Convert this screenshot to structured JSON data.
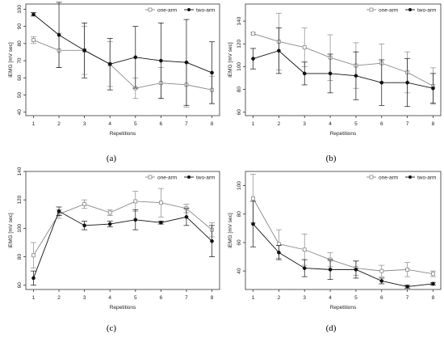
{
  "figure": {
    "captions": [
      "(a)",
      "(b)",
      "(c)",
      "(d)"
    ]
  },
  "colors": {
    "one_arm": "#888888",
    "two_arm": "#111111",
    "axis": "#333333",
    "background": "#ffffff"
  },
  "chart_data": [
    {
      "type": "line",
      "panel": "(a)",
      "xlabel": "Repetitions",
      "ylabel": "iEMG [mV sec]",
      "x": [
        1,
        2,
        3,
        4,
        5,
        6,
        7,
        8
      ],
      "xlim": [
        0.7,
        8.3
      ],
      "ylim": [
        38,
        103
      ],
      "yticks": [
        40,
        50,
        60,
        70,
        80,
        90,
        100
      ],
      "legend": "top-right",
      "series": [
        {
          "name": "one-arm",
          "marker": "open-square",
          "values": [
            82,
            76,
            76,
            68,
            54,
            57,
            56,
            53
          ],
          "error": [
            2,
            10,
            14,
            13,
            6,
            9,
            13,
            8
          ]
        },
        {
          "name": "two-arm",
          "marker": "filled-circle",
          "values": [
            97,
            85,
            76,
            68,
            72,
            70,
            69,
            63
          ],
          "error": [
            1,
            19,
            16,
            15,
            18,
            22,
            25,
            18
          ]
        }
      ]
    },
    {
      "type": "line",
      "panel": "(b)",
      "xlabel": "Repetitions",
      "ylabel": "iEMG [mV sec]",
      "x": [
        1,
        2,
        3,
        4,
        5,
        6,
        7,
        8
      ],
      "xlim": [
        0.7,
        8.3
      ],
      "ylim": [
        57,
        155
      ],
      "yticks": [
        60,
        80,
        100,
        120,
        140
      ],
      "legend": "top-right",
      "series": [
        {
          "name": "one-arm",
          "marker": "open-square",
          "values": [
            129,
            122,
            117,
            108,
            101,
            103,
            95,
            83
          ],
          "error": [
            1,
            25,
            17,
            20,
            20,
            17,
            18,
            16
          ]
        },
        {
          "name": "two-arm",
          "marker": "filled-circle",
          "values": [
            107,
            114,
            94,
            94,
            92,
            86,
            86,
            81
          ],
          "error": [
            9,
            20,
            10,
            17,
            21,
            20,
            21,
            13
          ]
        }
      ]
    },
    {
      "type": "line",
      "panel": "(c)",
      "xlabel": "Repetitions",
      "ylabel": "iEMG [mV sec]",
      "x": [
        1,
        2,
        3,
        4,
        5,
        6,
        7,
        8
      ],
      "xlim": [
        0.7,
        8.3
      ],
      "ylim": [
        57,
        140
      ],
      "yticks": [
        60,
        80,
        100,
        120,
        140
      ],
      "legend": "top-right",
      "series": [
        {
          "name": "one-arm",
          "marker": "open-square",
          "values": [
            81,
            110,
            117,
            111,
            119,
            118,
            114,
            99
          ],
          "error": [
            9,
            3,
            3,
            2,
            7,
            10,
            3,
            5
          ]
        },
        {
          "name": "two-arm",
          "marker": "filled-circle",
          "values": [
            65,
            112,
            102,
            103,
            106,
            104,
            108,
            91
          ],
          "error": [
            5,
            3,
            3,
            2,
            7,
            1,
            6,
            11
          ]
        }
      ]
    },
    {
      "type": "line",
      "panel": "(d)",
      "xlabel": "Repetitions",
      "ylabel": "iEMG [mV sec]",
      "x": [
        1,
        2,
        3,
        4,
        5,
        6,
        7,
        8
      ],
      "xlim": [
        0.7,
        8.3
      ],
      "ylim": [
        27,
        110
      ],
      "yticks": [
        40,
        60,
        80,
        100
      ],
      "legend": "top-right",
      "series": [
        {
          "name": "one-arm",
          "marker": "open-square",
          "values": [
            91,
            59,
            55,
            48,
            42,
            40,
            41,
            38
          ],
          "error": [
            17,
            10,
            11,
            5,
            5,
            4,
            5,
            2
          ]
        },
        {
          "name": "two-arm",
          "marker": "filled-circle",
          "values": [
            73,
            53,
            42,
            41,
            41,
            33,
            29,
            31
          ],
          "error": [
            16,
            5,
            6,
            7,
            6,
            2,
            1,
            1
          ]
        }
      ]
    }
  ]
}
